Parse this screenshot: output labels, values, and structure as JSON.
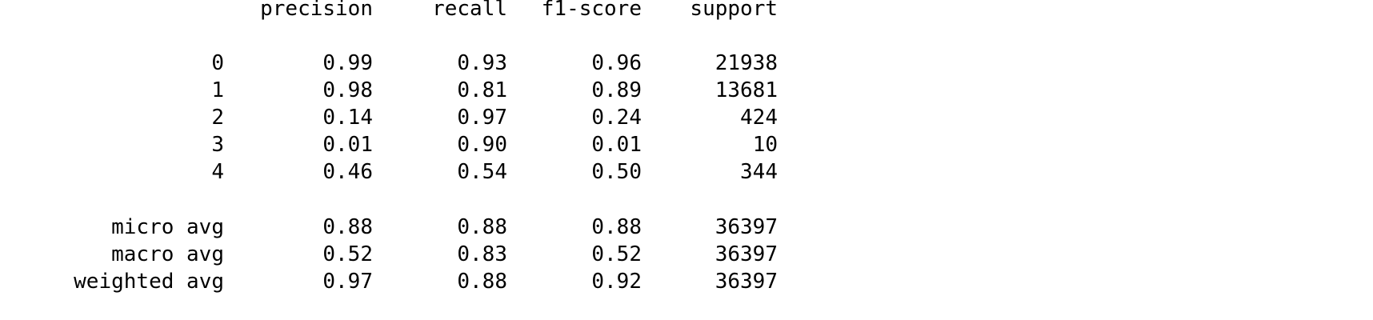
{
  "report": {
    "headers": [
      "precision",
      "recall",
      "f1-score",
      "support"
    ],
    "classes": [
      {
        "label": "0",
        "precision": "0.99",
        "recall": "0.93",
        "f1": "0.96",
        "support": "21938"
      },
      {
        "label": "1",
        "precision": "0.98",
        "recall": "0.81",
        "f1": "0.89",
        "support": "13681"
      },
      {
        "label": "2",
        "precision": "0.14",
        "recall": "0.97",
        "f1": "0.24",
        "support": "424"
      },
      {
        "label": "3",
        "precision": "0.01",
        "recall": "0.90",
        "f1": "0.01",
        "support": "10"
      },
      {
        "label": "4",
        "precision": "0.46",
        "recall": "0.54",
        "f1": "0.50",
        "support": "344"
      }
    ],
    "averages": [
      {
        "label": "micro avg",
        "precision": "0.88",
        "recall": "0.88",
        "f1": "0.88",
        "support": "36397"
      },
      {
        "label": "macro avg",
        "precision": "0.52",
        "recall": "0.83",
        "f1": "0.52",
        "support": "36397"
      },
      {
        "label": "weighted avg",
        "precision": "0.97",
        "recall": "0.88",
        "f1": "0.92",
        "support": "36397"
      }
    ]
  }
}
